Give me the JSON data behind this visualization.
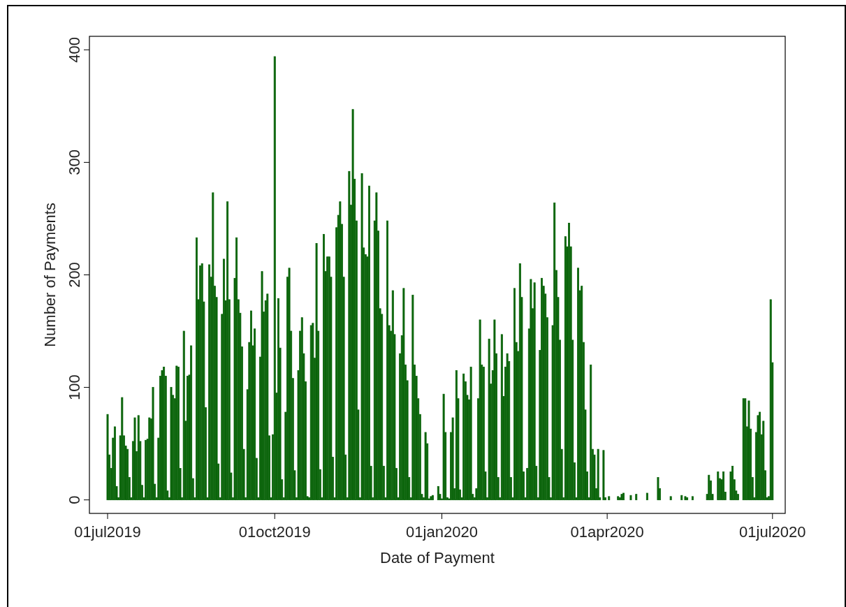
{
  "chart_data": {
    "type": "bar",
    "xlabel": "Date of Payment",
    "ylabel": "Number of Payments",
    "x": [
      "2019-07-01",
      "2019-07-02",
      "2019-07-03",
      "2019-07-04",
      "2019-07-05",
      "2019-07-06",
      "2019-07-07",
      "2019-07-08",
      "2019-07-09",
      "2019-07-10",
      "2019-07-11",
      "2019-07-12",
      "2019-07-13",
      "2019-07-14",
      "2019-07-15",
      "2019-07-16",
      "2019-07-17",
      "2019-07-18",
      "2019-07-19",
      "2019-07-20",
      "2019-07-21",
      "2019-07-22",
      "2019-07-23",
      "2019-07-24",
      "2019-07-25",
      "2019-07-26",
      "2019-07-27",
      "2019-07-28",
      "2019-07-29",
      "2019-07-30",
      "2019-07-31",
      "2019-08-01",
      "2019-08-02",
      "2019-08-03",
      "2019-08-04",
      "2019-08-05",
      "2019-08-06",
      "2019-08-07",
      "2019-08-08",
      "2019-08-09",
      "2019-08-10",
      "2019-08-11",
      "2019-08-12",
      "2019-08-13",
      "2019-08-14",
      "2019-08-15",
      "2019-08-16",
      "2019-08-17",
      "2019-08-18",
      "2019-08-19",
      "2019-08-20",
      "2019-08-21",
      "2019-08-22",
      "2019-08-23",
      "2019-08-24",
      "2019-08-25",
      "2019-08-26",
      "2019-08-27",
      "2019-08-28",
      "2019-08-29",
      "2019-08-30",
      "2019-08-31",
      "2019-09-01",
      "2019-09-02",
      "2019-09-03",
      "2019-09-04",
      "2019-09-05",
      "2019-09-06",
      "2019-09-07",
      "2019-09-08",
      "2019-09-09",
      "2019-09-10",
      "2019-09-11",
      "2019-09-12",
      "2019-09-13",
      "2019-09-14",
      "2019-09-15",
      "2019-09-16",
      "2019-09-17",
      "2019-09-18",
      "2019-09-19",
      "2019-09-20",
      "2019-09-21",
      "2019-09-22",
      "2019-09-23",
      "2019-09-24",
      "2019-09-25",
      "2019-09-26",
      "2019-09-27",
      "2019-09-28",
      "2019-09-29",
      "2019-09-30",
      "2019-10-01",
      "2019-10-02",
      "2019-10-03",
      "2019-10-04",
      "2019-10-05",
      "2019-10-06",
      "2019-10-07",
      "2019-10-08",
      "2019-10-09",
      "2019-10-10",
      "2019-10-11",
      "2019-10-12",
      "2019-10-13",
      "2019-10-14",
      "2019-10-15",
      "2019-10-16",
      "2019-10-17",
      "2019-10-18",
      "2019-10-19",
      "2019-10-20",
      "2019-10-21",
      "2019-10-22",
      "2019-10-23",
      "2019-10-24",
      "2019-10-25",
      "2019-10-26",
      "2019-10-27",
      "2019-10-28",
      "2019-10-29",
      "2019-10-30",
      "2019-10-31",
      "2019-11-01",
      "2019-11-02",
      "2019-11-03",
      "2019-11-04",
      "2019-11-05",
      "2019-11-06",
      "2019-11-07",
      "2019-11-08",
      "2019-11-09",
      "2019-11-10",
      "2019-11-11",
      "2019-11-12",
      "2019-11-13",
      "2019-11-14",
      "2019-11-15",
      "2019-11-16",
      "2019-11-17",
      "2019-11-18",
      "2019-11-19",
      "2019-11-20",
      "2019-11-21",
      "2019-11-22",
      "2019-11-23",
      "2019-11-24",
      "2019-11-25",
      "2019-11-26",
      "2019-11-27",
      "2019-11-28",
      "2019-11-29",
      "2019-11-30",
      "2019-12-01",
      "2019-12-02",
      "2019-12-03",
      "2019-12-04",
      "2019-12-05",
      "2019-12-06",
      "2019-12-07",
      "2019-12-08",
      "2019-12-09",
      "2019-12-10",
      "2019-12-11",
      "2019-12-12",
      "2019-12-13",
      "2019-12-14",
      "2019-12-15",
      "2019-12-16",
      "2019-12-17",
      "2019-12-18",
      "2019-12-19",
      "2019-12-20",
      "2019-12-21",
      "2019-12-22",
      "2019-12-23",
      "2019-12-24",
      "2019-12-25",
      "2019-12-26",
      "2019-12-27",
      "2019-12-28",
      "2019-12-29",
      "2019-12-30",
      "2019-12-31",
      "2020-01-01",
      "2020-01-02",
      "2020-01-03",
      "2020-01-04",
      "2020-01-05",
      "2020-01-06",
      "2020-01-07",
      "2020-01-08",
      "2020-01-09",
      "2020-01-10",
      "2020-01-11",
      "2020-01-12",
      "2020-01-13",
      "2020-01-14",
      "2020-01-15",
      "2020-01-16",
      "2020-01-17",
      "2020-01-18",
      "2020-01-19",
      "2020-01-20",
      "2020-01-21",
      "2020-01-22",
      "2020-01-23",
      "2020-01-24",
      "2020-01-25",
      "2020-01-26",
      "2020-01-27",
      "2020-01-28",
      "2020-01-29",
      "2020-01-30",
      "2020-01-31",
      "2020-02-01",
      "2020-02-02",
      "2020-02-03",
      "2020-02-04",
      "2020-02-05",
      "2020-02-06",
      "2020-02-07",
      "2020-02-08",
      "2020-02-09",
      "2020-02-10",
      "2020-02-11",
      "2020-02-12",
      "2020-02-13",
      "2020-02-14",
      "2020-02-15",
      "2020-02-16",
      "2020-02-17",
      "2020-02-18",
      "2020-02-19",
      "2020-02-20",
      "2020-02-21",
      "2020-02-22",
      "2020-02-23",
      "2020-02-24",
      "2020-02-25",
      "2020-02-26",
      "2020-02-27",
      "2020-02-28",
      "2020-02-29",
      "2020-03-01",
      "2020-03-02",
      "2020-03-03",
      "2020-03-04",
      "2020-03-05",
      "2020-03-06",
      "2020-03-07",
      "2020-03-08",
      "2020-03-09",
      "2020-03-10",
      "2020-03-11",
      "2020-03-12",
      "2020-03-13",
      "2020-03-14",
      "2020-03-15",
      "2020-03-16",
      "2020-03-17",
      "2020-03-18",
      "2020-03-19",
      "2020-03-20",
      "2020-03-21",
      "2020-03-22",
      "2020-03-23",
      "2020-03-24",
      "2020-03-25",
      "2020-03-26",
      "2020-03-27",
      "2020-03-28",
      "2020-03-29",
      "2020-03-30",
      "2020-03-31",
      "2020-04-01",
      "2020-04-02",
      "2020-04-03",
      "2020-04-04",
      "2020-04-05",
      "2020-04-06",
      "2020-04-07",
      "2020-04-08",
      "2020-04-09",
      "2020-04-10",
      "2020-04-11",
      "2020-04-12",
      "2020-04-13",
      "2020-04-14",
      "2020-04-15",
      "2020-04-16",
      "2020-04-17",
      "2020-04-18",
      "2020-04-19",
      "2020-04-20",
      "2020-04-21",
      "2020-04-22",
      "2020-04-23",
      "2020-04-24",
      "2020-04-25",
      "2020-04-26",
      "2020-04-27",
      "2020-04-28",
      "2020-04-29",
      "2020-04-30",
      "2020-05-01",
      "2020-05-02",
      "2020-05-03",
      "2020-05-04",
      "2020-05-05",
      "2020-05-06",
      "2020-05-07",
      "2020-05-08",
      "2020-05-09",
      "2020-05-10",
      "2020-05-11",
      "2020-05-12",
      "2020-05-13",
      "2020-05-14",
      "2020-05-15",
      "2020-05-16",
      "2020-05-17",
      "2020-05-18",
      "2020-05-19",
      "2020-05-20",
      "2020-05-21",
      "2020-05-22",
      "2020-05-23",
      "2020-05-24",
      "2020-05-25",
      "2020-05-26",
      "2020-05-27",
      "2020-05-28",
      "2020-05-29",
      "2020-05-30",
      "2020-05-31",
      "2020-06-01",
      "2020-06-02",
      "2020-06-03",
      "2020-06-04",
      "2020-06-05",
      "2020-06-06",
      "2020-06-07",
      "2020-06-08",
      "2020-06-09",
      "2020-06-10",
      "2020-06-11",
      "2020-06-12",
      "2020-06-13",
      "2020-06-14",
      "2020-06-15",
      "2020-06-16",
      "2020-06-17",
      "2020-06-18",
      "2020-06-19",
      "2020-06-20",
      "2020-06-21",
      "2020-06-22",
      "2020-06-23",
      "2020-06-24",
      "2020-06-25",
      "2020-06-26",
      "2020-06-27",
      "2020-06-28",
      "2020-06-29",
      "2020-06-30",
      "2020-07-01"
    ],
    "values": [
      76,
      40,
      28,
      55,
      65,
      12,
      2,
      57,
      91,
      57,
      48,
      45,
      20,
      2,
      52,
      73,
      43,
      75,
      52,
      13,
      2,
      53,
      54,
      73,
      72,
      100,
      14,
      2,
      55,
      110,
      115,
      118,
      110,
      8,
      2,
      100,
      93,
      90,
      119,
      118,
      28,
      2,
      150,
      70,
      110,
      111,
      137,
      19,
      2,
      233,
      178,
      208,
      210,
      176,
      82,
      2,
      209,
      198,
      273,
      190,
      180,
      32,
      2,
      165,
      214,
      177,
      265,
      178,
      24,
      2,
      197,
      233,
      178,
      166,
      136,
      45,
      2,
      98,
      140,
      168,
      137,
      152,
      37,
      2,
      127,
      203,
      167,
      177,
      183,
      57,
      2,
      58,
      394,
      95,
      179,
      135,
      18,
      2,
      78,
      198,
      206,
      150,
      108,
      26,
      2,
      115,
      150,
      162,
      130,
      105,
      3,
      2,
      155,
      157,
      126,
      228,
      150,
      27,
      2,
      236,
      203,
      216,
      216,
      198,
      38,
      2,
      242,
      253,
      265,
      245,
      198,
      40,
      2,
      292,
      262,
      347,
      285,
      248,
      80,
      2,
      290,
      224,
      218,
      216,
      279,
      30,
      2,
      248,
      273,
      239,
      170,
      165,
      30,
      2,
      248,
      155,
      150,
      186,
      147,
      28,
      2,
      130,
      146,
      188,
      120,
      106,
      20,
      2,
      182,
      120,
      110,
      90,
      76,
      5,
      2,
      60,
      50,
      1,
      3,
      4,
      0,
      0,
      12,
      5,
      1,
      94,
      60,
      2,
      1,
      60,
      73,
      10,
      115,
      90,
      9,
      2,
      112,
      105,
      93,
      89,
      118,
      5,
      2,
      10,
      90,
      160,
      120,
      118,
      25,
      2,
      143,
      103,
      115,
      160,
      130,
      20,
      2,
      147,
      92,
      118,
      130,
      123,
      20,
      2,
      188,
      140,
      132,
      210,
      180,
      25,
      2,
      28,
      152,
      196,
      170,
      193,
      30,
      2,
      133,
      197,
      190,
      183,
      162,
      20,
      2,
      155,
      264,
      204,
      180,
      142,
      45,
      2,
      234,
      225,
      246,
      225,
      142,
      33,
      2,
      206,
      186,
      190,
      140,
      80,
      25,
      2,
      120,
      45,
      40,
      10,
      45,
      2,
      0,
      44,
      2,
      0,
      3,
      0,
      0,
      0,
      0,
      3,
      2,
      5,
      6,
      0,
      0,
      0,
      4,
      0,
      0,
      5,
      0,
      0,
      0,
      0,
      0,
      6,
      0,
      0,
      0,
      0,
      0,
      20,
      10,
      0,
      0,
      0,
      0,
      0,
      3,
      0,
      0,
      0,
      0,
      0,
      4,
      0,
      3,
      2,
      0,
      0,
      3,
      0,
      0,
      0,
      0,
      0,
      0,
      0,
      5,
      22,
      17,
      5,
      0,
      0,
      25,
      19,
      18,
      25,
      7,
      0,
      0,
      25,
      30,
      18,
      8,
      5,
      0,
      0,
      90,
      90,
      65,
      88,
      63,
      20,
      2,
      60,
      75,
      78,
      58,
      70,
      26,
      2,
      3,
      178,
      122
    ],
    "color": "#0a640a",
    "xlim": [
      "2019-06-21",
      "2020-07-08"
    ],
    "xticks": [
      {
        "value": "2019-07-01",
        "label": "01jul2019"
      },
      {
        "value": "2019-10-01",
        "label": "01oct2019"
      },
      {
        "value": "2020-01-01",
        "label": "01jan2020"
      },
      {
        "value": "2020-04-01",
        "label": "01apr2020"
      },
      {
        "value": "2020-07-01",
        "label": "01jul2020"
      }
    ],
    "ylim": [
      -12,
      412
    ],
    "yticks": [
      0,
      100,
      200,
      300,
      400
    ],
    "grid": false
  }
}
